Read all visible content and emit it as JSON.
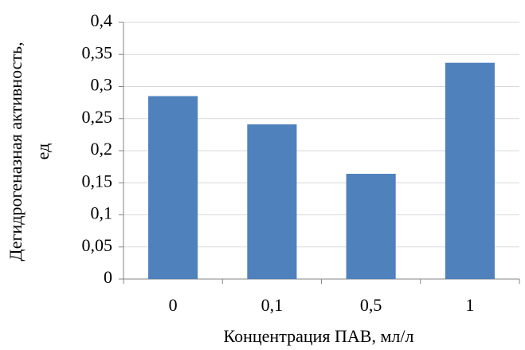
{
  "chart_data": {
    "type": "bar",
    "categories": [
      "0",
      "0,1",
      "0,5",
      "1"
    ],
    "values": [
      0.285,
      0.241,
      0.164,
      0.337
    ],
    "color": "#4f81bd",
    "x_label": "Концентрация ПАВ, мл/л",
    "y_label": [
      "Дегидрогеназная активность,",
      "ед"
    ],
    "ylim": [
      0,
      0.4
    ],
    "yticks": [
      0,
      {
        "value": 0.05,
        "label": "0,05"
      },
      {
        "value": 0.1,
        "label": "0,1"
      },
      {
        "value": 0.15,
        "label": "0,15"
      },
      {
        "value": 0.2,
        "label": "0,2"
      },
      {
        "value": 0.25,
        "label": "0,25"
      },
      {
        "value": 0.3,
        "label": "0,3"
      },
      {
        "value": 0.35,
        "label": "0,35"
      },
      {
        "value": 0.4,
        "label": "0,4"
      }
    ],
    "grid": true
  }
}
